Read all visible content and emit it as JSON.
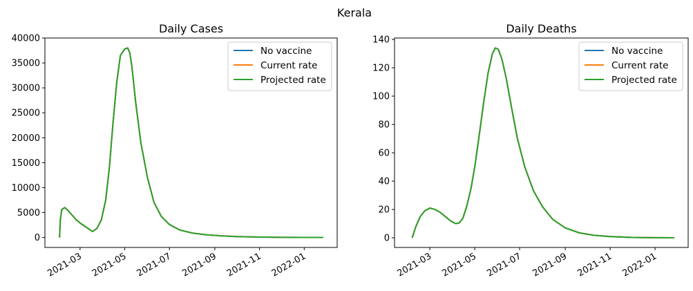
{
  "figure": {
    "title": "Kerala"
  },
  "colors": {
    "no_vaccine": "#1f77b4",
    "current_rate": "#ff7f0e",
    "projected_rate": "#2ca02c"
  },
  "chart_data": [
    {
      "type": "line",
      "title": "Daily Cases",
      "xlabel": "",
      "ylabel": "",
      "xlim": [
        "2021-01-12",
        "2022-02-15"
      ],
      "ylim": [
        -2000,
        40000
      ],
      "x_ticks": [
        "2021-03",
        "2021-05",
        "2021-07",
        "2021-09",
        "2021-11",
        "2022-01"
      ],
      "y_ticks": [
        0,
        5000,
        10000,
        15000,
        20000,
        25000,
        30000,
        35000,
        40000
      ],
      "legend": {
        "placement": "top-right",
        "entries": [
          "No vaccine",
          "Current rate",
          "Projected rate"
        ]
      },
      "grid": false,
      "x": [
        "2021-02-01",
        "2021-02-02",
        "2021-02-04",
        "2021-02-08",
        "2021-02-12",
        "2021-02-18",
        "2021-02-24",
        "2021-03-02",
        "2021-03-10",
        "2021-03-18",
        "2021-03-24",
        "2021-03-30",
        "2021-04-05",
        "2021-04-10",
        "2021-04-15",
        "2021-04-20",
        "2021-04-25",
        "2021-05-01",
        "2021-05-05",
        "2021-05-08",
        "2021-05-11",
        "2021-05-16",
        "2021-05-23",
        "2021-06-01",
        "2021-06-10",
        "2021-06-20",
        "2021-07-01",
        "2021-07-15",
        "2021-08-01",
        "2021-08-20",
        "2021-09-10",
        "2021-10-01",
        "2021-11-01",
        "2021-12-01",
        "2022-01-01",
        "2022-01-27"
      ],
      "series": [
        {
          "name": "No vaccine",
          "values": [
            0,
            3500,
            5600,
            6000,
            5500,
            4500,
            3500,
            2800,
            2000,
            1200,
            1800,
            3500,
            7500,
            14000,
            23000,
            31000,
            36500,
            37800,
            38000,
            37000,
            34000,
            27000,
            19000,
            12000,
            7000,
            4200,
            2600,
            1500,
            900,
            550,
            320,
            180,
            80,
            30,
            10,
            5
          ]
        },
        {
          "name": "Current rate",
          "values": [
            0,
            3500,
            5600,
            6000,
            5500,
            4500,
            3500,
            2800,
            2000,
            1200,
            1800,
            3500,
            7500,
            14000,
            23000,
            31000,
            36500,
            37800,
            38000,
            37000,
            34000,
            27000,
            19000,
            12000,
            7000,
            4200,
            2600,
            1500,
            900,
            550,
            320,
            180,
            80,
            30,
            10,
            5
          ]
        },
        {
          "name": "Projected rate",
          "values": [
            0,
            3500,
            5600,
            6000,
            5500,
            4500,
            3500,
            2800,
            2000,
            1200,
            1800,
            3500,
            7500,
            14000,
            23000,
            31000,
            36500,
            37800,
            38000,
            37000,
            34000,
            27000,
            19000,
            12000,
            7000,
            4200,
            2600,
            1500,
            900,
            550,
            320,
            180,
            80,
            30,
            10,
            5
          ]
        }
      ]
    },
    {
      "type": "line",
      "title": "Daily Deaths",
      "xlabel": "",
      "ylabel": "",
      "xlim": [
        "2021-01-12",
        "2022-02-15"
      ],
      "ylim": [
        -6.8,
        141
      ],
      "x_ticks": [
        "2021-03",
        "2021-05",
        "2021-07",
        "2021-09",
        "2021-11",
        "2022-01"
      ],
      "y_ticks": [
        0,
        20,
        40,
        60,
        80,
        100,
        120,
        140
      ],
      "legend": {
        "placement": "top-right",
        "entries": [
          "No vaccine",
          "Current rate",
          "Projected rate"
        ]
      },
      "grid": false,
      "x": [
        "2021-02-05",
        "2021-02-10",
        "2021-02-16",
        "2021-02-22",
        "2021-03-01",
        "2021-03-08",
        "2021-03-15",
        "2021-03-22",
        "2021-03-29",
        "2021-04-05",
        "2021-04-10",
        "2021-04-15",
        "2021-04-20",
        "2021-04-26",
        "2021-05-01",
        "2021-05-07",
        "2021-05-13",
        "2021-05-19",
        "2021-05-25",
        "2021-05-29",
        "2021-06-02",
        "2021-06-07",
        "2021-06-13",
        "2021-06-20",
        "2021-06-28",
        "2021-07-08",
        "2021-07-20",
        "2021-08-01",
        "2021-08-15",
        "2021-09-01",
        "2021-09-20",
        "2021-10-10",
        "2021-11-01",
        "2021-12-01",
        "2022-01-01",
        "2022-01-27"
      ],
      "series": [
        {
          "name": "No vaccine",
          "values": [
            0,
            8,
            15,
            19,
            21,
            20,
            18,
            15,
            12,
            10,
            10.5,
            14,
            22,
            35,
            50,
            72,
            95,
            116,
            130,
            134,
            133,
            126,
            112,
            92,
            70,
            50,
            33,
            22,
            13,
            7,
            3.5,
            1.8,
            0.9,
            0.3,
            0.1,
            0
          ]
        },
        {
          "name": "Current rate",
          "values": [
            0,
            8,
            15,
            19,
            21,
            20,
            18,
            15,
            12,
            10,
            10.5,
            14,
            22,
            35,
            50,
            72,
            95,
            116,
            130,
            134,
            133,
            126,
            112,
            92,
            70,
            50,
            33,
            22,
            13,
            7,
            3.5,
            1.8,
            0.9,
            0.3,
            0.1,
            0
          ]
        },
        {
          "name": "Projected rate",
          "values": [
            0,
            8,
            15,
            19,
            21,
            20,
            18,
            15,
            12,
            10,
            10.5,
            14,
            22,
            35,
            50,
            72,
            95,
            116,
            130,
            134,
            133,
            126,
            112,
            92,
            70,
            50,
            33,
            22,
            13,
            7,
            3.5,
            1.8,
            0.9,
            0.3,
            0.1,
            0
          ]
        }
      ]
    }
  ]
}
